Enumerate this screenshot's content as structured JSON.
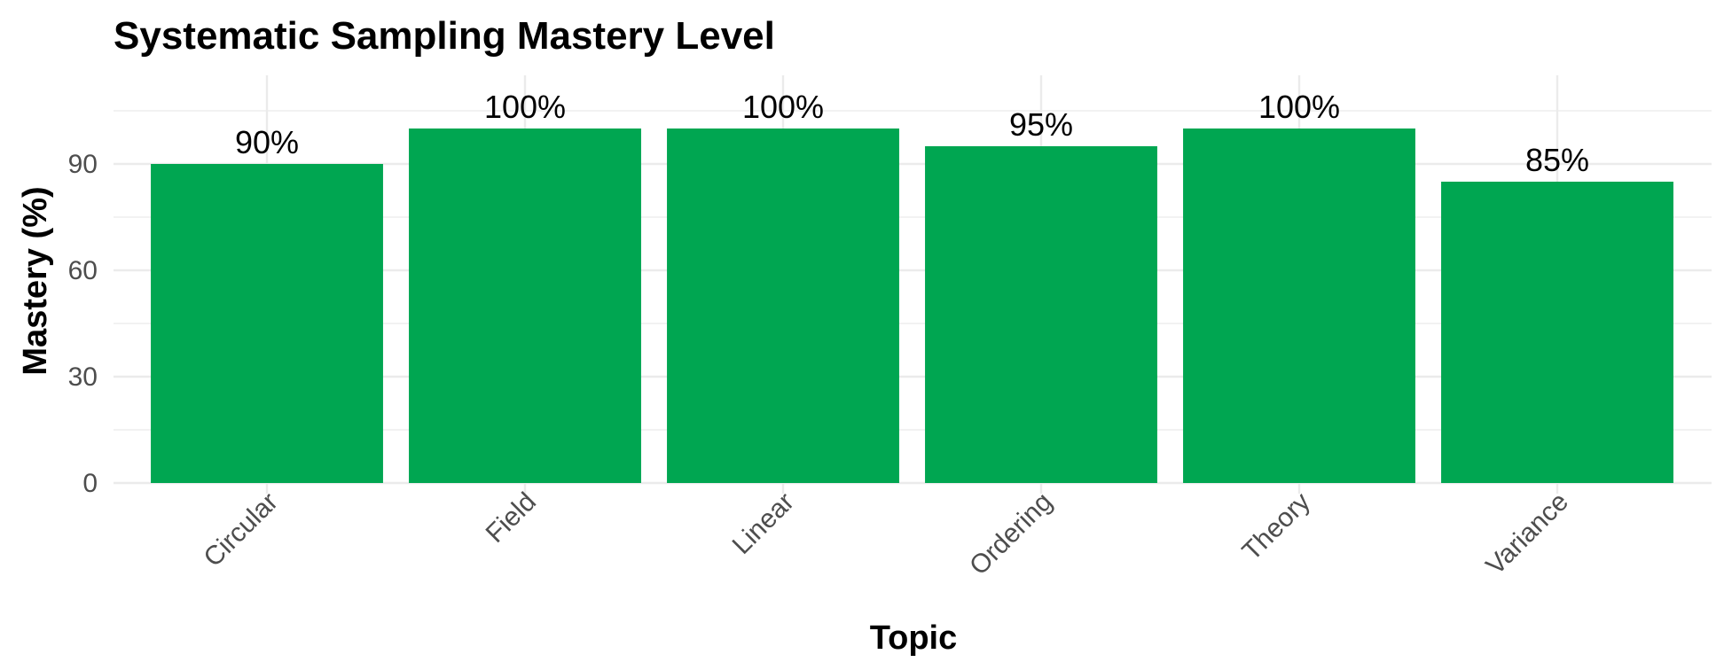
{
  "chart_data": {
    "type": "bar",
    "title": "Systematic Sampling Mastery Level",
    "xlabel": "Topic",
    "ylabel": "Mastery (%)",
    "categories": [
      "Circular",
      "Field",
      "Linear",
      "Ordering",
      "Theory",
      "Variance"
    ],
    "values": [
      90,
      100,
      100,
      95,
      100,
      85
    ],
    "data_labels": [
      "90%",
      "100%",
      "100%",
      "95%",
      "100%",
      "85%"
    ],
    "yticks": [
      0,
      30,
      60,
      90
    ],
    "ylim": [
      0,
      115
    ],
    "grid": true,
    "legend": "none",
    "bar_color": "#00A651",
    "x_tick_rotation": "45 degrees"
  }
}
